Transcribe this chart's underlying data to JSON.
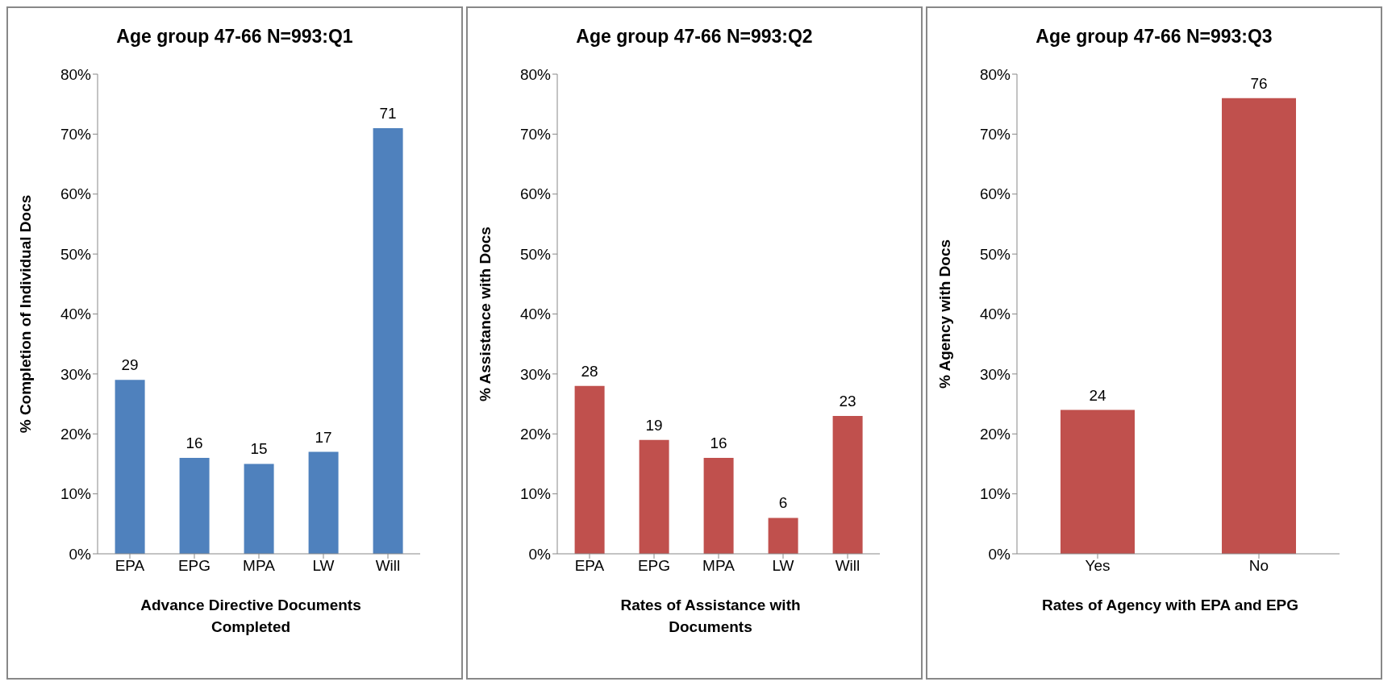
{
  "chart_data": [
    {
      "type": "bar",
      "title": "Age group 47-66 N=993:Q1",
      "xlabel": "Advance Directive Documents Completed",
      "ylabel": "% Completion of Individual Docs",
      "categories": [
        "EPA",
        "EPG",
        "MPA",
        "LW",
        "Will"
      ],
      "values": [
        29,
        16,
        15,
        17,
        71
      ],
      "color": "#4f81bd",
      "ylim": [
        0,
        80
      ],
      "yticks": [
        {
          "value": 0,
          "label": "0%"
        },
        {
          "value": 10,
          "label": "10%"
        },
        {
          "value": 20,
          "label": "20%"
        },
        {
          "value": 30,
          "label": "30%"
        },
        {
          "value": 40,
          "label": "40%"
        },
        {
          "value": 50,
          "label": "50%"
        },
        {
          "value": 60,
          "label": "60%"
        },
        {
          "value": 70,
          "label": "70%"
        },
        {
          "value": 80,
          "label": "80%"
        }
      ],
      "data_labels": true
    },
    {
      "type": "bar",
      "title": "Age group 47-66 N=993:Q2",
      "xlabel": "Rates of Assistance with Documents",
      "ylabel": "% Assistance with Docs",
      "categories": [
        "EPA",
        "EPG",
        "MPA",
        "LW",
        "Will"
      ],
      "values": [
        28,
        19,
        16,
        6,
        23
      ],
      "color": "#c0504d",
      "ylim": [
        0,
        80
      ],
      "yticks": [
        {
          "value": 0,
          "label": "0%"
        },
        {
          "value": 10,
          "label": "10%"
        },
        {
          "value": 20,
          "label": "20%"
        },
        {
          "value": 30,
          "label": "30%"
        },
        {
          "value": 40,
          "label": "40%"
        },
        {
          "value": 50,
          "label": "50%"
        },
        {
          "value": 60,
          "label": "60%"
        },
        {
          "value": 70,
          "label": "70%"
        },
        {
          "value": 80,
          "label": "80%"
        }
      ],
      "data_labels": true
    },
    {
      "type": "bar",
      "title": "Age group 47-66 N=993:Q3",
      "xlabel": "Rates of Agency with EPA and EPG",
      "ylabel": "% Agency with Docs",
      "categories": [
        "Yes",
        "No"
      ],
      "values": [
        24,
        76
      ],
      "color": "#c0504d",
      "ylim": [
        0,
        80
      ],
      "yticks": [
        {
          "value": 0,
          "label": "0%"
        },
        {
          "value": 10,
          "label": "10%"
        },
        {
          "value": 20,
          "label": "20%"
        },
        {
          "value": 30,
          "label": "30%"
        },
        {
          "value": 40,
          "label": "40%"
        },
        {
          "value": 50,
          "label": "50%"
        },
        {
          "value": 60,
          "label": "60%"
        },
        {
          "value": 70,
          "label": "70%"
        },
        {
          "value": 80,
          "label": "80%"
        }
      ],
      "data_labels": true
    }
  ]
}
